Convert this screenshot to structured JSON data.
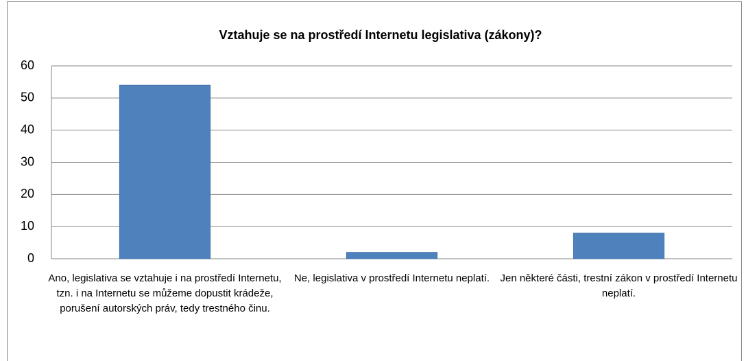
{
  "chart_data": {
    "type": "bar",
    "title": "Vztahuje se na prostředí Internetu legislativa (zákony)?",
    "categories": [
      "Ano, legislativa se vztahuje i na prostředí Internetu, tzn. i na Internetu se můžeme dopustit krádeže, porušení autorských práv, tedy trestného činu.",
      "Ne, legislativa v prostředí Internetu neplatí.",
      "Jen některé části, trestní zákon v prostředí Internetu neplatí."
    ],
    "values": [
      54,
      2,
      8
    ],
    "color": "#4f81bd",
    "ylim": [
      0,
      60
    ],
    "yticks": [
      0,
      10,
      20,
      30,
      40,
      50,
      60
    ],
    "grid": true
  }
}
